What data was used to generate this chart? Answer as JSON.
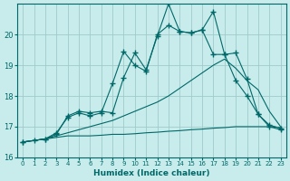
{
  "xlabel": "Humidex (Indice chaleur)",
  "bg_color": "#c8ecec",
  "grid_color": "#a0caca",
  "line_color": "#006868",
  "xlim": [
    -0.5,
    23.5
  ],
  "ylim": [
    16,
    21
  ],
  "yticks": [
    16,
    17,
    18,
    19,
    20
  ],
  "xticks": [
    0,
    1,
    2,
    3,
    4,
    5,
    6,
    7,
    8,
    9,
    10,
    11,
    12,
    13,
    14,
    15,
    16,
    17,
    18,
    19,
    20,
    21,
    22,
    23
  ],
  "series1_x": [
    0,
    1,
    2,
    3,
    4,
    5,
    6,
    7,
    8,
    9,
    10,
    11,
    12,
    13,
    14,
    15,
    16,
    17,
    18,
    19,
    20,
    21,
    22,
    23
  ],
  "series1_y": [
    16.5,
    16.55,
    16.6,
    16.65,
    16.7,
    16.7,
    16.7,
    16.72,
    16.75,
    16.75,
    16.77,
    16.8,
    16.82,
    16.85,
    16.87,
    16.9,
    16.92,
    16.95,
    16.97,
    17.0,
    17.0,
    17.0,
    17.0,
    16.97
  ],
  "series2_x": [
    0,
    1,
    2,
    3,
    4,
    5,
    6,
    7,
    8,
    9,
    10,
    11,
    12,
    13,
    14,
    15,
    16,
    17,
    18,
    19,
    20,
    21,
    22,
    23
  ],
  "series2_y": [
    16.5,
    16.55,
    16.6,
    16.7,
    16.8,
    16.9,
    17.0,
    17.1,
    17.2,
    17.35,
    17.5,
    17.65,
    17.8,
    18.0,
    18.25,
    18.5,
    18.75,
    19.0,
    19.2,
    18.9,
    18.5,
    18.2,
    17.5,
    17.0
  ],
  "series3_x": [
    0,
    1,
    2,
    3,
    4,
    5,
    6,
    7,
    8,
    9,
    10,
    11,
    12,
    13,
    14,
    15,
    16,
    17,
    18,
    19,
    20,
    21,
    22,
    23
  ],
  "series3_y": [
    16.5,
    16.55,
    16.6,
    16.8,
    17.3,
    17.45,
    17.35,
    17.45,
    18.4,
    19.45,
    19.0,
    18.8,
    20.0,
    20.3,
    20.1,
    20.05,
    20.15,
    19.35,
    19.35,
    18.5,
    18.0,
    17.4,
    17.05,
    16.95
  ],
  "series4_x": [
    0,
    2,
    3,
    4,
    5,
    6,
    7,
    8,
    9,
    10,
    11,
    12,
    13,
    14,
    15,
    16,
    17,
    18,
    19,
    20,
    21,
    22,
    23
  ],
  "series4_y": [
    16.5,
    16.6,
    16.75,
    17.35,
    17.5,
    17.45,
    17.5,
    17.45,
    18.6,
    19.4,
    18.85,
    19.95,
    21.0,
    20.1,
    20.05,
    20.15,
    20.75,
    19.35,
    19.4,
    18.55,
    17.4,
    17.0,
    16.9
  ],
  "marker_series3_x": [
    0,
    2,
    3,
    4,
    5,
    6,
    7,
    8,
    9,
    10,
    11,
    12,
    13,
    14,
    15,
    16,
    17,
    18,
    19,
    20,
    21,
    22,
    23
  ],
  "marker_series3_y": [
    16.5,
    16.6,
    16.8,
    17.3,
    17.45,
    17.35,
    17.45,
    18.4,
    19.45,
    19.0,
    18.8,
    20.0,
    20.3,
    20.1,
    20.05,
    20.15,
    19.35,
    19.35,
    18.5,
    18.0,
    17.4,
    17.05,
    16.95
  ],
  "marker_series4_x": [
    0,
    2,
    3,
    4,
    5,
    6,
    7,
    8,
    9,
    10,
    11,
    12,
    13,
    14,
    15,
    16,
    17,
    18,
    19,
    20,
    21,
    22,
    23
  ],
  "marker_series4_y": [
    16.5,
    16.6,
    16.75,
    17.35,
    17.5,
    17.45,
    17.5,
    17.45,
    18.6,
    19.4,
    18.85,
    19.95,
    21.0,
    20.1,
    20.05,
    20.15,
    20.75,
    19.35,
    19.4,
    18.55,
    17.4,
    17.0,
    16.9
  ]
}
